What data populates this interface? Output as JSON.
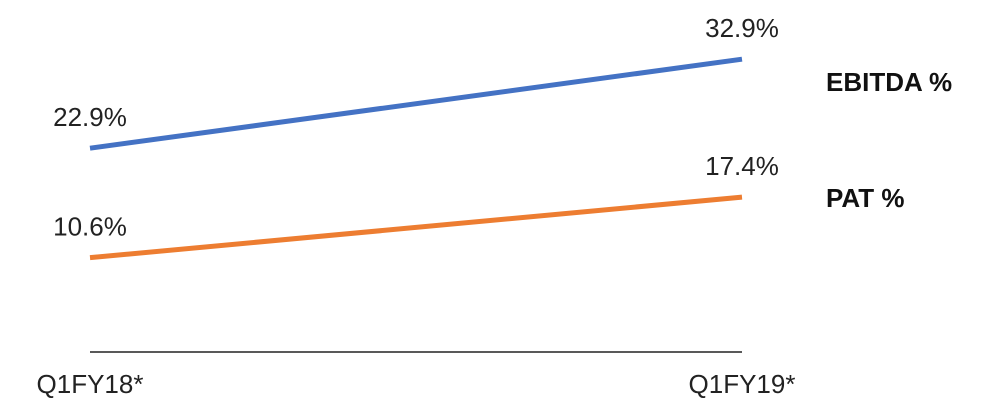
{
  "chart_data": {
    "type": "line",
    "categories": [
      "Q1FY18*",
      "Q1FY19*"
    ],
    "series": [
      {
        "name": "EBITDA %",
        "values": [
          22.9,
          32.9
        ],
        "labels": [
          "22.9%",
          "32.9%"
        ],
        "color": "#4472C4"
      },
      {
        "name": "PAT %",
        "values": [
          10.6,
          17.4
        ],
        "labels": [
          "10.6%",
          "17.4%"
        ],
        "color": "#ED7D31"
      }
    ],
    "legend": "right",
    "grid": false,
    "ylim": [
      0,
      36
    ]
  }
}
